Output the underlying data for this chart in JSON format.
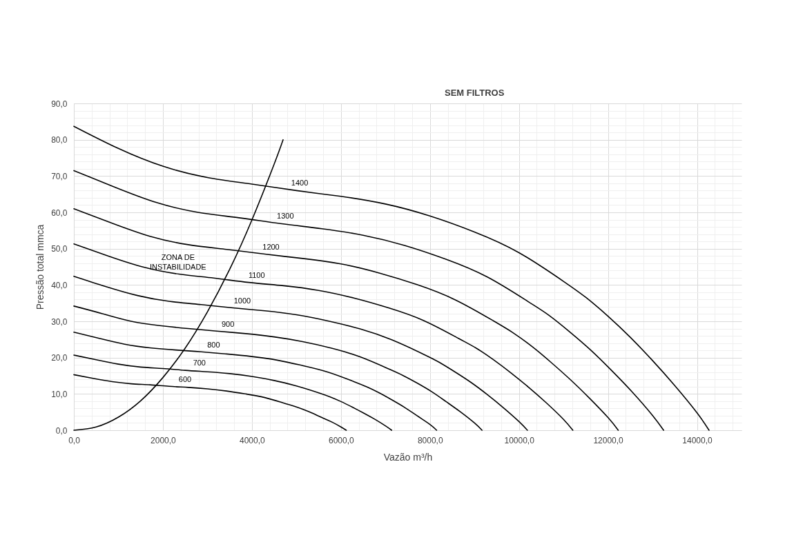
{
  "chart_data": {
    "type": "line",
    "title": "SEM FILTROS",
    "xlabel": "Vazão m³/h",
    "ylabel": "Pressão total mmca",
    "xlim": [
      0,
      15000
    ],
    "ylim": [
      0,
      90
    ],
    "xticks": [
      {
        "value": 0,
        "label": "0,0"
      },
      {
        "value": 400,
        "label": null
      },
      {
        "value": 800,
        "label": null
      },
      {
        "value": 1200,
        "label": null
      },
      {
        "value": 1600,
        "label": null
      },
      {
        "value": 2000,
        "label": "2000,0"
      },
      {
        "value": 2400,
        "label": null
      },
      {
        "value": 2800,
        "label": null
      },
      {
        "value": 3200,
        "label": null
      },
      {
        "value": 3600,
        "label": null
      },
      {
        "value": 4000,
        "label": "4000,0"
      },
      {
        "value": 4400,
        "label": null
      },
      {
        "value": 4800,
        "label": null
      },
      {
        "value": 5200,
        "label": null
      },
      {
        "value": 5600,
        "label": null
      },
      {
        "value": 6000,
        "label": "6000,0"
      },
      {
        "value": 6400,
        "label": null
      },
      {
        "value": 6800,
        "label": null
      },
      {
        "value": 7200,
        "label": null
      },
      {
        "value": 7600,
        "label": null
      },
      {
        "value": 8000,
        "label": "8000,0"
      },
      {
        "value": 8400,
        "label": null
      },
      {
        "value": 8800,
        "label": null
      },
      {
        "value": 9200,
        "label": null
      },
      {
        "value": 9600,
        "label": null
      },
      {
        "value": 10000,
        "label": "10000,0"
      },
      {
        "value": 10400,
        "label": null
      },
      {
        "value": 10800,
        "label": null
      },
      {
        "value": 11200,
        "label": null
      },
      {
        "value": 11600,
        "label": null
      },
      {
        "value": 12000,
        "label": "12000,0"
      },
      {
        "value": 12400,
        "label": null
      },
      {
        "value": 12800,
        "label": null
      },
      {
        "value": 13200,
        "label": null
      },
      {
        "value": 13600,
        "label": null
      },
      {
        "value": 14000,
        "label": "14000,0"
      },
      {
        "value": 14400,
        "label": null
      },
      {
        "value": 14800,
        "label": null
      }
    ],
    "yticks": [
      {
        "value": 0,
        "label": "0,0"
      },
      {
        "value": 2,
        "label": null
      },
      {
        "value": 4,
        "label": null
      },
      {
        "value": 6,
        "label": null
      },
      {
        "value": 8,
        "label": null
      },
      {
        "value": 10,
        "label": "10,0"
      },
      {
        "value": 12,
        "label": null
      },
      {
        "value": 14,
        "label": null
      },
      {
        "value": 16,
        "label": null
      },
      {
        "value": 18,
        "label": null
      },
      {
        "value": 20,
        "label": "20,0"
      },
      {
        "value": 22,
        "label": null
      },
      {
        "value": 24,
        "label": null
      },
      {
        "value": 26,
        "label": null
      },
      {
        "value": 28,
        "label": null
      },
      {
        "value": 30,
        "label": "30,0"
      },
      {
        "value": 32,
        "label": null
      },
      {
        "value": 34,
        "label": null
      },
      {
        "value": 36,
        "label": null
      },
      {
        "value": 38,
        "label": null
      },
      {
        "value": 40,
        "label": "40,0"
      },
      {
        "value": 42,
        "label": null
      },
      {
        "value": 44,
        "label": null
      },
      {
        "value": 46,
        "label": null
      },
      {
        "value": 48,
        "label": null
      },
      {
        "value": 50,
        "label": "50,0"
      },
      {
        "value": 52,
        "label": null
      },
      {
        "value": 54,
        "label": null
      },
      {
        "value": 56,
        "label": null
      },
      {
        "value": 58,
        "label": null
      },
      {
        "value": 60,
        "label": "60,0"
      },
      {
        "value": 62,
        "label": null
      },
      {
        "value": 64,
        "label": null
      },
      {
        "value": 66,
        "label": null
      },
      {
        "value": 68,
        "label": null
      },
      {
        "value": 70,
        "label": "70,0"
      },
      {
        "value": 72,
        "label": null
      },
      {
        "value": 74,
        "label": null
      },
      {
        "value": 76,
        "label": null
      },
      {
        "value": 78,
        "label": null
      },
      {
        "value": 80,
        "label": "80,0"
      },
      {
        "value": 82,
        "label": null
      },
      {
        "value": 84,
        "label": null
      },
      {
        "value": 86,
        "label": null
      },
      {
        "value": 88,
        "label": null
      },
      {
        "value": 90,
        "label": "90,0"
      }
    ],
    "grid": true,
    "annotations": [
      "ZONA DE INSTABILIDADE"
    ],
    "series": [
      {
        "name": "600",
        "color": "#000000",
        "x": [
          0,
          430,
          860,
          1290,
          1710,
          2140,
          2570,
          3000,
          3430,
          3860,
          4290,
          4710,
          4930,
          5140,
          5360,
          5570,
          5790,
          6000,
          6120
        ],
        "values": [
          15.3,
          14.3,
          13.4,
          12.8,
          12.5,
          12.1,
          11.8,
          11.4,
          10.8,
          10.0,
          9.0,
          7.5,
          6.7,
          5.8,
          4.7,
          3.5,
          2.3,
          0.9,
          0
        ]
      },
      {
        "name": "700",
        "color": "#000000",
        "x": [
          0,
          500,
          1000,
          1500,
          2000,
          2500,
          3000,
          3500,
          4000,
          4500,
          5000,
          5500,
          5750,
          6000,
          6250,
          6500,
          6750,
          7000,
          7140
        ],
        "values": [
          20.7,
          19.4,
          18.2,
          17.4,
          17.0,
          16.5,
          16.1,
          15.6,
          14.8,
          13.7,
          12.2,
          10.3,
          9.2,
          7.9,
          6.4,
          4.8,
          3.1,
          1.2,
          0
        ]
      },
      {
        "name": "800",
        "color": "#000000",
        "x": [
          0,
          570,
          1140,
          1710,
          2290,
          2860,
          3430,
          4000,
          4570,
          5140,
          5710,
          6290,
          6570,
          6860,
          7140,
          7430,
          7710,
          8000,
          8150
        ],
        "values": [
          27.0,
          25.3,
          23.7,
          22.7,
          22.1,
          21.6,
          21.0,
          20.3,
          19.3,
          17.8,
          16.0,
          13.4,
          12.0,
          10.3,
          8.4,
          6.3,
          4.0,
          1.6,
          0
        ]
      },
      {
        "name": "900",
        "color": "#000000",
        "x": [
          0,
          640,
          1290,
          1930,
          2570,
          3210,
          3860,
          4500,
          5140,
          5790,
          6430,
          7070,
          7390,
          7710,
          8040,
          8360,
          8680,
          9000,
          9170
        ],
        "values": [
          34.2,
          32.1,
          30.0,
          28.8,
          28.0,
          27.3,
          26.6,
          25.7,
          24.4,
          22.6,
          20.2,
          16.9,
          15.1,
          13.0,
          10.6,
          7.9,
          5.1,
          2.0,
          0
        ]
      },
      {
        "name": "1000",
        "color": "#000000",
        "x": [
          0,
          710,
          1430,
          2140,
          2860,
          3570,
          4290,
          5000,
          5710,
          6430,
          7140,
          7860,
          8210,
          8570,
          8930,
          9290,
          9640,
          10000,
          10190
        ],
        "values": [
          42.4,
          39.6,
          37.1,
          35.5,
          34.6,
          33.7,
          32.9,
          31.8,
          30.1,
          27.9,
          24.9,
          20.9,
          18.7,
          16.0,
          13.1,
          9.8,
          6.3,
          2.4,
          0
        ]
      },
      {
        "name": "1100",
        "color": "#000000",
        "x": [
          0,
          790,
          1570,
          2360,
          3140,
          3930,
          4710,
          5500,
          6290,
          7070,
          7860,
          8640,
          9040,
          9430,
          9820,
          10210,
          10610,
          11000,
          11210
        ],
        "values": [
          51.3,
          47.9,
          44.9,
          43.0,
          41.9,
          40.7,
          39.8,
          38.5,
          36.4,
          33.7,
          30.2,
          25.3,
          22.6,
          19.4,
          15.8,
          11.9,
          7.6,
          3.0,
          0
        ]
      },
      {
        "name": "1200",
        "color": "#000000",
        "x": [
          0,
          860,
          1710,
          2570,
          3430,
          4290,
          5140,
          6000,
          6860,
          7710,
          8570,
          9430,
          9860,
          10290,
          10710,
          11140,
          11570,
          12000,
          12230
        ],
        "values": [
          61.0,
          57.0,
          53.4,
          51.1,
          49.8,
          48.5,
          47.3,
          45.8,
          43.3,
          40.1,
          35.9,
          30.1,
          26.9,
          23.1,
          18.8,
          14.1,
          9.0,
          3.5,
          0
        ]
      },
      {
        "name": "1300",
        "color": "#000000",
        "x": [
          0,
          930,
          1860,
          2790,
          3710,
          4640,
          5570,
          6500,
          7430,
          8360,
          9290,
          10210,
          10680,
          11140,
          11610,
          12070,
          12540,
          13000,
          13250
        ],
        "values": [
          71.5,
          66.9,
          62.7,
          60.0,
          58.5,
          56.9,
          55.5,
          53.7,
          50.9,
          47.1,
          42.2,
          35.4,
          31.6,
          27.1,
          22.1,
          16.6,
          10.6,
          4.1,
          0
        ]
      },
      {
        "name": "1400",
        "color": "#000000",
        "x": [
          0,
          1000,
          2000,
          3000,
          4000,
          5000,
          6000,
          7000,
          8000,
          9000,
          10000,
          11000,
          11500,
          12000,
          12500,
          13000,
          13500,
          14000,
          14270
        ],
        "values": [
          83.7,
          77.6,
          72.7,
          69.6,
          67.8,
          66.0,
          64.4,
          62.3,
          59.0,
          54.6,
          48.9,
          41.0,
          36.6,
          31.4,
          25.6,
          19.2,
          12.3,
          4.8,
          0
        ]
      },
      {
        "color": "#000000",
        "x": [
          0,
          500,
          1000,
          1500,
          2000,
          2500,
          3000,
          3500,
          4000,
          4500,
          4700
        ],
        "values": [
          0,
          0.9,
          3.6,
          8.1,
          14.5,
          22.6,
          32.6,
          44.3,
          57.9,
          73.3,
          80.0
        ]
      }
    ]
  }
}
